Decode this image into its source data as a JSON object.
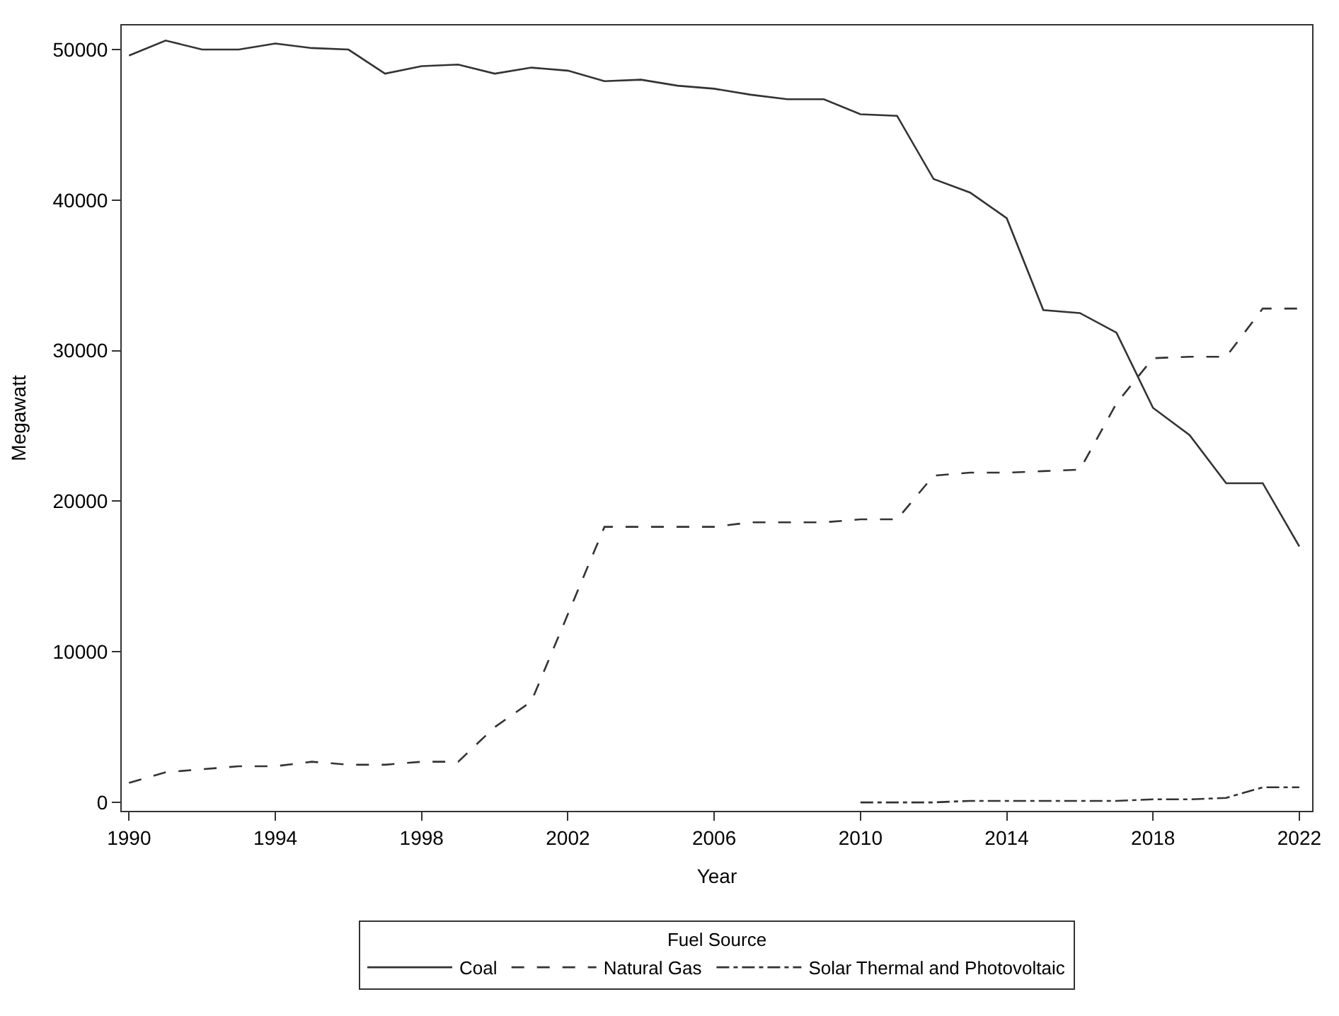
{
  "chart_data": {
    "type": "line",
    "xlabel": "Year",
    "ylabel": "Megawatt",
    "legend_title": "Fuel Source",
    "legend": "bottom",
    "marker": "none",
    "x": [
      1990,
      1991,
      1992,
      1993,
      1994,
      1995,
      1996,
      1997,
      1998,
      1999,
      2000,
      2001,
      2002,
      2003,
      2004,
      2005,
      2006,
      2007,
      2008,
      2009,
      2010,
      2011,
      2012,
      2013,
      2014,
      2015,
      2016,
      2017,
      2018,
      2019,
      2020,
      2021,
      2022
    ],
    "xlim": [
      1989.8,
      2022.35
    ],
    "xticks": [
      1990,
      1994,
      1998,
      2002,
      2006,
      2010,
      2014,
      2018,
      2022
    ],
    "ylim": [
      -560,
      51600
    ],
    "yticks": [
      0,
      10000,
      20000,
      30000,
      40000,
      50000
    ],
    "series": [
      {
        "name": "Coal",
        "color": "#333333",
        "line_style": "solid",
        "values": [
          49600,
          50600,
          50000,
          50000,
          50400,
          50100,
          50000,
          48400,
          48900,
          49000,
          48400,
          48800,
          48600,
          47900,
          48000,
          47600,
          47400,
          47000,
          46700,
          46700,
          45700,
          45600,
          41400,
          40500,
          38800,
          32700,
          32500,
          31200,
          26200,
          24400,
          21200,
          21200,
          17000
        ]
      },
      {
        "name": "Natural Gas",
        "color": "#333333",
        "line_style": "dashed",
        "values": [
          1300,
          2000,
          2200,
          2400,
          2400,
          2700,
          2500,
          2500,
          2700,
          2700,
          5000,
          6700,
          12500,
          18300,
          18300,
          18300,
          18300,
          18600,
          18600,
          18600,
          18800,
          18800,
          21700,
          21900,
          21900,
          22000,
          22100,
          26500,
          29500,
          29600,
          29600,
          32800,
          32800
        ]
      },
      {
        "name": "Solar Thermal and Photovoltaic",
        "color": "#333333",
        "line_style": "dashdot",
        "values": [
          null,
          null,
          null,
          null,
          null,
          null,
          null,
          null,
          null,
          null,
          null,
          null,
          null,
          null,
          null,
          null,
          null,
          null,
          null,
          null,
          0,
          0,
          0,
          100,
          100,
          100,
          100,
          100,
          200,
          200,
          300,
          1000,
          1000
        ]
      }
    ]
  }
}
